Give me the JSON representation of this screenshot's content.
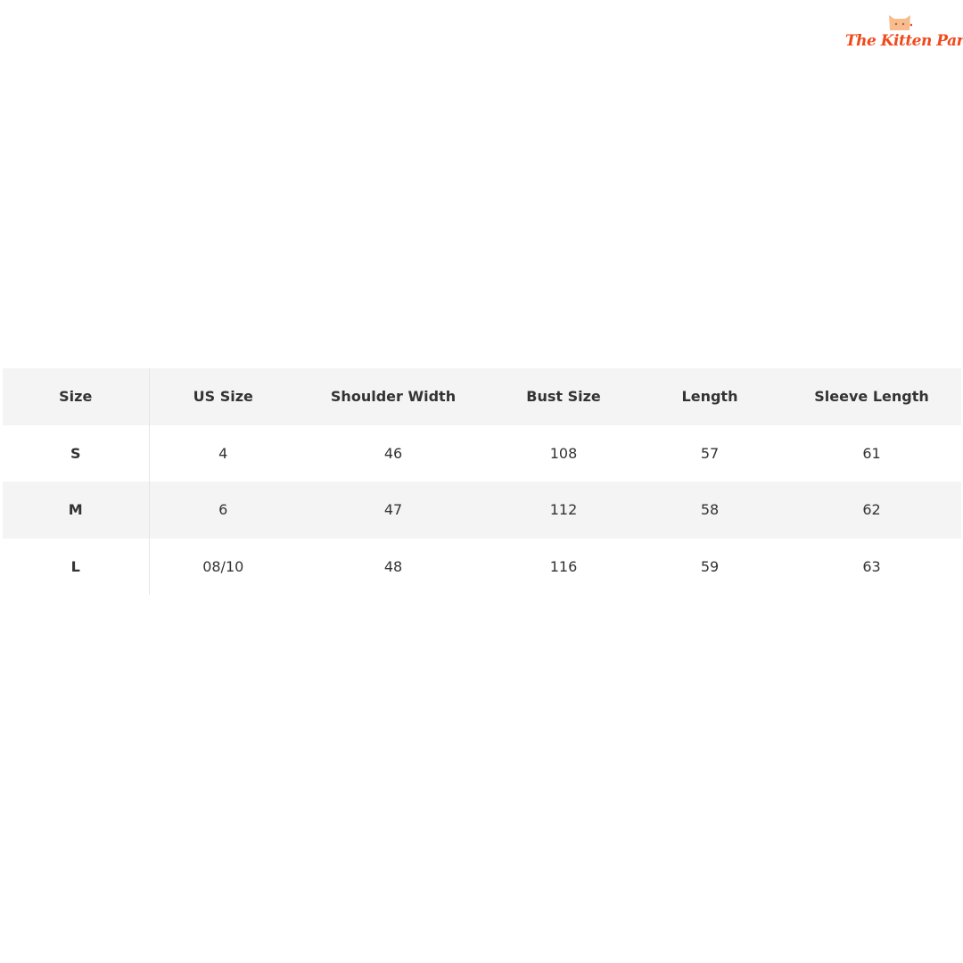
{
  "brand": {
    "name": "The Kitten Park",
    "color": "#f04a1c"
  },
  "size_chart": {
    "headers": [
      "Size",
      "US Size",
      "Shoulder Width",
      "Bust Size",
      "Length",
      "Sleeve Length"
    ],
    "rows": [
      [
        "S",
        "4",
        "46",
        "108",
        "57",
        "61"
      ],
      [
        "M",
        "6",
        "47",
        "112",
        "58",
        "62"
      ],
      [
        "L",
        "08/10",
        "48",
        "116",
        "59",
        "63"
      ]
    ]
  }
}
